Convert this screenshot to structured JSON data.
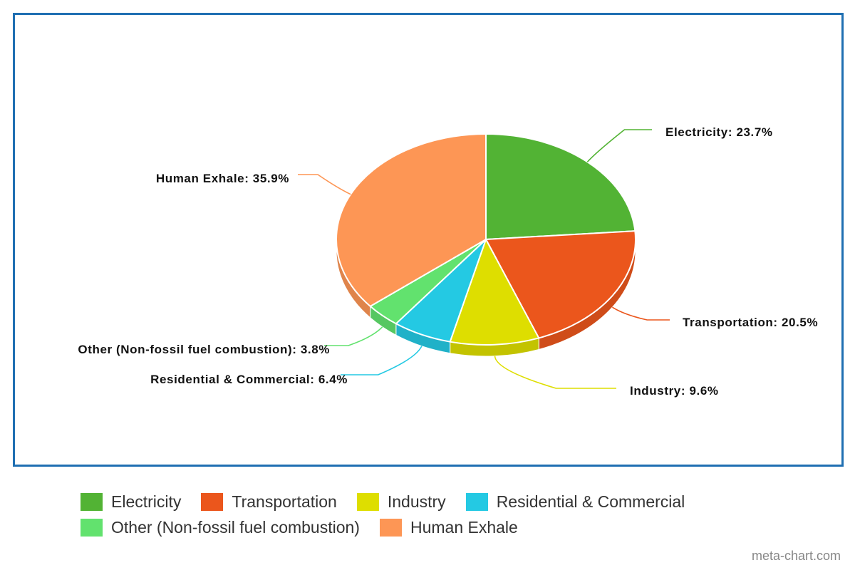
{
  "chart_data": {
    "type": "pie",
    "style": "3d",
    "title": "",
    "slices": [
      {
        "label": "Electricity",
        "value": 23.7,
        "data_label": "Electricity: 23.7%",
        "color": "#52b334"
      },
      {
        "label": "Transportation",
        "value": 20.5,
        "data_label": "Transportation: 20.5%",
        "color": "#eb561c"
      },
      {
        "label": "Industry",
        "value": 9.6,
        "data_label": "Industry: 9.6%",
        "color": "#dede00"
      },
      {
        "label": "Residential & Commercial",
        "value": 6.4,
        "data_label": "Residential & Commercial: 6.4%",
        "color": "#24c9e3"
      },
      {
        "label": "Other (Non-fossil fuel combustion)",
        "value": 3.8,
        "data_label": "Other (Non-fossil fuel combustion): 3.8%",
        "color": "#62e26e"
      },
      {
        "label": "Human Exhale",
        "value": 35.9,
        "data_label": "Human Exhale: 35.9%",
        "color": "#fd9655"
      }
    ],
    "legend_position": "bottom",
    "start_angle": "top",
    "direction": "clockwise"
  },
  "frame_color": "#1f6fb2",
  "credit": "meta-chart.com"
}
